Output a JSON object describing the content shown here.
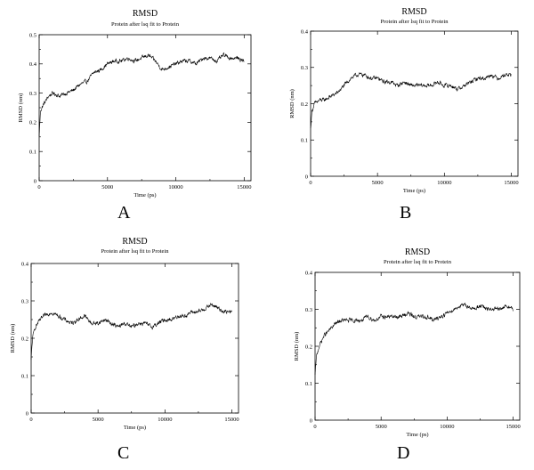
{
  "chart_data": [
    {
      "panel": "A",
      "type": "line",
      "title": "RMSD",
      "subtitle": "Protein after lsq fit to Protein",
      "xlabel": "Time (ps)",
      "ylabel": "RMSD (nm)",
      "xlim": [
        0,
        15500
      ],
      "ylim": [
        0,
        0.5
      ],
      "xticks": [
        0,
        5000,
        10000,
        15000
      ],
      "yticks": [
        0,
        0.1,
        0.2,
        0.3,
        0.4,
        0.5
      ],
      "series": [
        {
          "x": [
            0,
            100,
            300,
            700,
            1000,
            1500,
            2000,
            2500,
            3000,
            3500,
            4000,
            4500,
            5000,
            5500,
            6000,
            6500,
            7000,
            7500,
            8000,
            8500,
            9000,
            9500,
            10000,
            10500,
            11000,
            11500,
            12000,
            12500,
            13000,
            13500,
            14000,
            14500,
            15000
          ],
          "y": [
            0.15,
            0.24,
            0.26,
            0.29,
            0.3,
            0.29,
            0.3,
            0.31,
            0.33,
            0.34,
            0.37,
            0.38,
            0.4,
            0.41,
            0.41,
            0.42,
            0.41,
            0.42,
            0.43,
            0.41,
            0.38,
            0.39,
            0.4,
            0.41,
            0.41,
            0.4,
            0.42,
            0.42,
            0.41,
            0.43,
            0.42,
            0.42,
            0.41
          ],
          "noise": 0.012
        }
      ]
    },
    {
      "panel": "B",
      "type": "line",
      "title": "RMSD",
      "subtitle": "Protein after lsq fit to Protein",
      "xlabel": "Time (ps)",
      "ylabel": "RMSD (nm)",
      "xlim": [
        0,
        15500
      ],
      "ylim": [
        0,
        0.4
      ],
      "xticks": [
        0,
        5000,
        10000,
        15000
      ],
      "yticks": [
        0,
        0.1,
        0.2,
        0.3,
        0.4
      ],
      "series": [
        {
          "x": [
            0,
            100,
            300,
            700,
            1000,
            1500,
            2000,
            2500,
            3000,
            3500,
            4000,
            4500,
            5000,
            5500,
            6000,
            6500,
            7000,
            7500,
            8000,
            8500,
            9000,
            9500,
            10000,
            10500,
            11000,
            11500,
            12000,
            12500,
            13000,
            13500,
            14000,
            14500,
            15000
          ],
          "y": [
            0.13,
            0.18,
            0.2,
            0.21,
            0.21,
            0.22,
            0.23,
            0.25,
            0.27,
            0.28,
            0.28,
            0.27,
            0.27,
            0.26,
            0.26,
            0.25,
            0.26,
            0.25,
            0.25,
            0.25,
            0.25,
            0.26,
            0.25,
            0.25,
            0.24,
            0.25,
            0.26,
            0.27,
            0.27,
            0.28,
            0.27,
            0.28,
            0.28
          ],
          "noise": 0.01
        }
      ]
    },
    {
      "panel": "C",
      "type": "line",
      "title": "RMSD",
      "subtitle": "Protein after lsq fit to Protein",
      "xlabel": "Time (ps)",
      "ylabel": "RMSD (nm)",
      "xlim": [
        0,
        15500
      ],
      "ylim": [
        0,
        0.4
      ],
      "xticks": [
        0,
        5000,
        10000,
        15000
      ],
      "yticks": [
        0,
        0.1,
        0.2,
        0.3,
        0.4
      ],
      "series": [
        {
          "x": [
            0,
            100,
            300,
            700,
            1000,
            1500,
            2000,
            2500,
            3000,
            3500,
            4000,
            4500,
            5000,
            5500,
            6000,
            6500,
            7000,
            7500,
            8000,
            8500,
            9000,
            9500,
            10000,
            10500,
            11000,
            11500,
            12000,
            12500,
            13000,
            13500,
            14000,
            14500,
            15000
          ],
          "y": [
            0.14,
            0.2,
            0.23,
            0.25,
            0.26,
            0.27,
            0.26,
            0.25,
            0.24,
            0.25,
            0.26,
            0.24,
            0.24,
            0.25,
            0.24,
            0.23,
            0.24,
            0.23,
            0.24,
            0.24,
            0.23,
            0.24,
            0.25,
            0.25,
            0.26,
            0.26,
            0.27,
            0.27,
            0.28,
            0.29,
            0.28,
            0.27,
            0.27
          ],
          "noise": 0.01
        }
      ]
    },
    {
      "panel": "D",
      "type": "line",
      "title": "RMSD",
      "subtitle": "Protein after lsq fit to Protein",
      "xlabel": "Time (ps)",
      "ylabel": "RMSD (nm)",
      "xlim": [
        0,
        15500
      ],
      "ylim": [
        0,
        0.4
      ],
      "xticks": [
        0,
        5000,
        10000,
        15000
      ],
      "yticks": [
        0,
        0.1,
        0.2,
        0.3,
        0.4
      ],
      "series": [
        {
          "x": [
            0,
            100,
            300,
            700,
            1000,
            1500,
            2000,
            2500,
            3000,
            3500,
            4000,
            4500,
            5000,
            5500,
            6000,
            6500,
            7000,
            7500,
            8000,
            8500,
            9000,
            9500,
            10000,
            10500,
            11000,
            11500,
            12000,
            12500,
            13000,
            13500,
            14000,
            14500,
            15000
          ],
          "y": [
            0.12,
            0.17,
            0.2,
            0.23,
            0.24,
            0.26,
            0.27,
            0.27,
            0.27,
            0.27,
            0.28,
            0.27,
            0.28,
            0.28,
            0.28,
            0.28,
            0.29,
            0.28,
            0.28,
            0.28,
            0.27,
            0.28,
            0.29,
            0.3,
            0.31,
            0.31,
            0.3,
            0.31,
            0.3,
            0.3,
            0.3,
            0.31,
            0.3
          ],
          "noise": 0.01
        }
      ]
    }
  ]
}
